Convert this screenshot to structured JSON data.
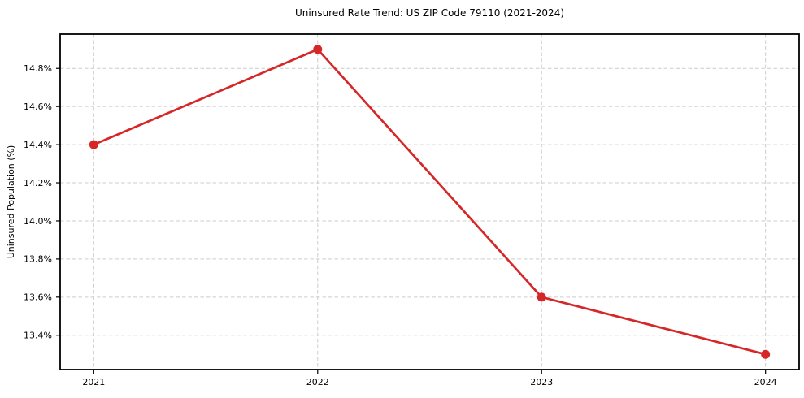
{
  "figure": {
    "background": "#ffffff"
  },
  "chart_data": {
    "type": "line",
    "title": "Uninsured Rate Trend: US ZIP Code 79110 (2021-2024)",
    "xlabel": "",
    "ylabel": "Uninsured Population (%)",
    "x": [
      2021,
      2022,
      2023,
      2024
    ],
    "x_tick_labels": [
      "2021",
      "2022",
      "2023",
      "2024"
    ],
    "series": [
      {
        "name": "uninsured-rate",
        "values": [
          14.4,
          14.9,
          13.6,
          13.3
        ],
        "color": "#d62728",
        "marker": "circle"
      }
    ],
    "y_ticks": [
      13.4,
      13.6,
      13.8,
      14.0,
      14.2,
      14.4,
      14.6,
      14.8
    ],
    "y_tick_labels": [
      "13.4%",
      "13.6%",
      "13.8%",
      "14.0%",
      "14.2%",
      "14.4%",
      "14.6%",
      "14.8%"
    ],
    "xlim": [
      2020.85,
      2024.15
    ],
    "ylim": [
      13.22,
      14.98
    ],
    "grid": true,
    "legend_position": "none",
    "style": {
      "grid_color": "#cccccc",
      "grid_dash": "4.5,3",
      "axis_color": "#000000",
      "tick_color": "#000000",
      "text_color": "#000000",
      "line_width": 2.7,
      "marker_radius": 5.5,
      "spine_width": 1.8
    }
  }
}
